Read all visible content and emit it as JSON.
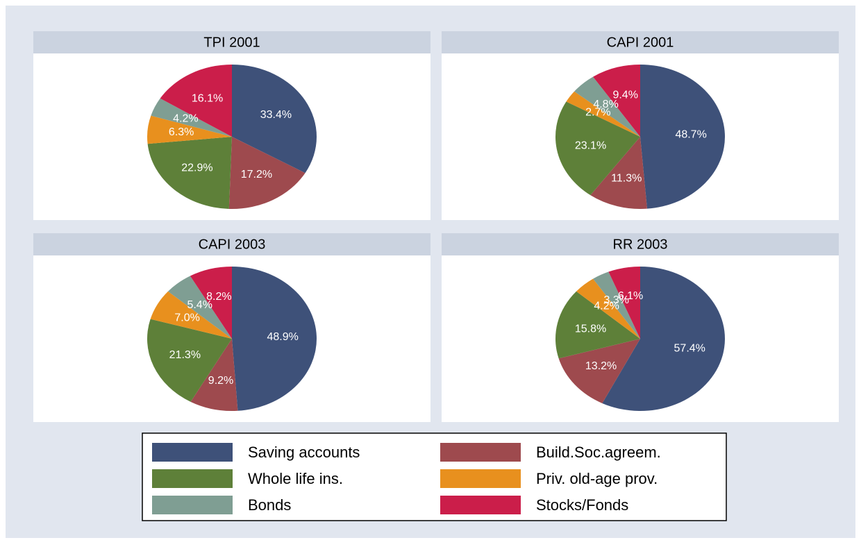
{
  "chart_data": [
    {
      "type": "pie",
      "title": "TPI 2001",
      "categories": [
        "Saving accounts",
        "Build.Soc.agreem.",
        "Whole life ins.",
        "Priv. old-age prov.",
        "Bonds",
        "Stocks/Fonds"
      ],
      "values": [
        33.4,
        17.2,
        22.9,
        6.3,
        4.2,
        16.1
      ],
      "value_labels": [
        "33.4%",
        "17.2%",
        "22.9%",
        "6.3%",
        "4.2%",
        "16.1%"
      ],
      "colors": [
        "#3e5179",
        "#9e4a4e",
        "#5e8039",
        "#e8901e",
        "#7f9e93",
        "#cb1e4a"
      ]
    },
    {
      "type": "pie",
      "title": "CAPI 2001",
      "categories": [
        "Saving accounts",
        "Build.Soc.agreem.",
        "Whole life ins.",
        "Priv. old-age prov.",
        "Bonds",
        "Stocks/Fonds"
      ],
      "values": [
        48.7,
        11.3,
        23.1,
        2.7,
        4.8,
        9.4
      ],
      "value_labels": [
        "48.7%",
        "11.3%",
        "23.1%",
        "2.7%",
        "4.8%",
        "9.4%"
      ],
      "colors": [
        "#3e5179",
        "#9e4a4e",
        "#5e8039",
        "#e8901e",
        "#7f9e93",
        "#cb1e4a"
      ]
    },
    {
      "type": "pie",
      "title": "CAPI 2003",
      "categories": [
        "Saving accounts",
        "Build.Soc.agreem.",
        "Whole life ins.",
        "Priv. old-age prov.",
        "Bonds",
        "Stocks/Fonds"
      ],
      "values": [
        48.9,
        9.2,
        21.3,
        7.0,
        5.4,
        8.2
      ],
      "value_labels": [
        "48.9%",
        "9.2%",
        "21.3%",
        "7.0%",
        "5.4%",
        "8.2%"
      ],
      "colors": [
        "#3e5179",
        "#9e4a4e",
        "#5e8039",
        "#e8901e",
        "#7f9e93",
        "#cb1e4a"
      ]
    },
    {
      "type": "pie",
      "title": "RR 2003",
      "categories": [
        "Saving accounts",
        "Build.Soc.agreem.",
        "Whole life ins.",
        "Priv. old-age prov.",
        "Bonds",
        "Stocks/Fonds"
      ],
      "values": [
        57.4,
        13.2,
        15.8,
        4.2,
        3.3,
        6.1
      ],
      "value_labels": [
        "57.4%",
        "13.2%",
        "15.8%",
        "4.2%",
        "3.3%",
        "6.1%"
      ],
      "colors": [
        "#3e5179",
        "#9e4a4e",
        "#5e8039",
        "#e8901e",
        "#7f9e93",
        "#cb1e4a"
      ]
    }
  ]
}
